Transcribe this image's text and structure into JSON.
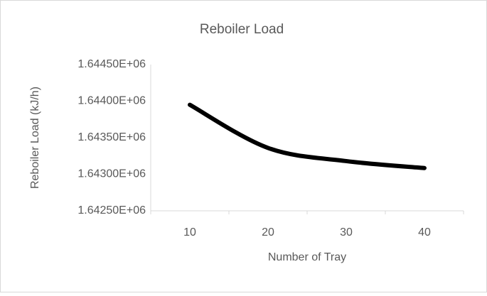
{
  "chart_data": {
    "type": "line",
    "title": "Reboiler Load",
    "x_label": "Number of Tray",
    "y_label": "Reboiler Load  (kJ/h)",
    "categories": [
      "10",
      "20",
      "30",
      "40"
    ],
    "values": [
      1643950,
      1643360,
      1643180,
      1643085
    ],
    "color": "#000000",
    "smooth": true,
    "ylim": [
      1642500,
      1644500
    ],
    "yticks": [
      {
        "value": 1642500,
        "label": "1.64250E+06"
      },
      {
        "value": 1643000,
        "label": "1.64300E+06"
      },
      {
        "value": 1643500,
        "label": "1.64350E+06"
      },
      {
        "value": 1644000,
        "label": "1.64400E+06"
      },
      {
        "value": 1644500,
        "label": "1.64450E+06"
      }
    ],
    "grid": false
  }
}
